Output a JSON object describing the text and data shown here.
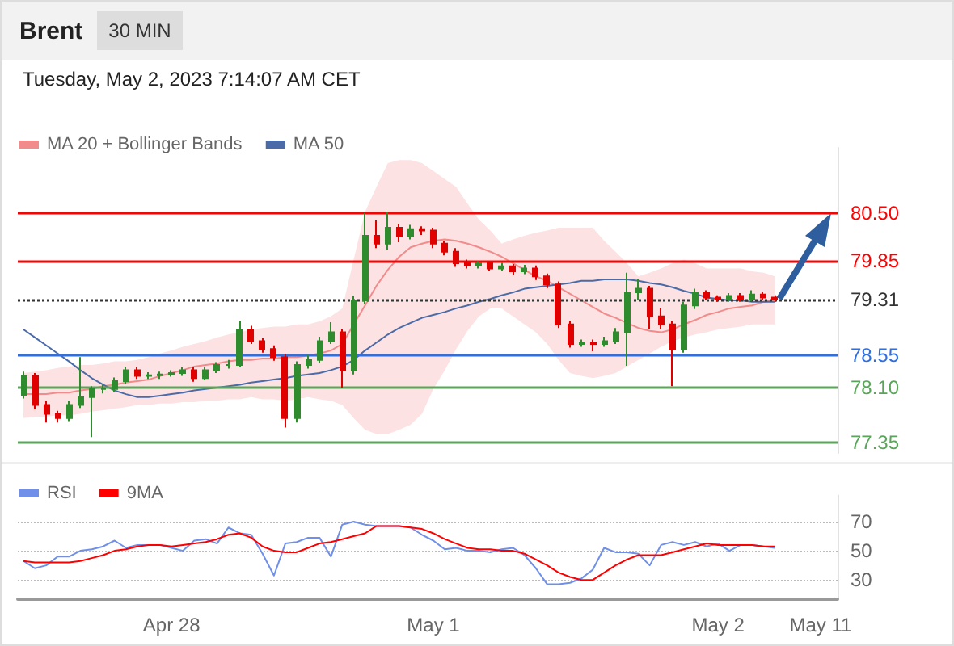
{
  "chart_data": [
    {
      "type": "candlestick",
      "title": "Brent",
      "subtitle": "Tuesday, May 2, 2023 7:14:07 AM CET",
      "annotations": [
        "30 MIN"
      ],
      "categories": [
        null,
        null,
        null,
        null,
        null,
        null,
        null,
        null,
        null,
        null,
        null,
        null,
        null,
        null,
        null,
        null,
        null,
        null,
        null,
        null,
        null,
        null,
        null,
        null,
        null,
        null,
        null,
        null,
        null,
        null,
        null,
        null,
        null,
        null,
        null,
        null,
        null,
        null,
        null,
        null,
        null,
        null,
        null,
        null,
        null,
        null,
        null,
        null,
        null,
        null,
        null,
        null,
        null,
        null,
        null,
        null,
        null,
        null,
        null,
        null,
        null,
        null,
        null,
        null,
        null,
        null,
        null,
        null,
        null,
        null,
        null,
        null
      ],
      "ohlc": [
        [
          78.0,
          78.32,
          77.95,
          78.26
        ],
        [
          78.26,
          78.3,
          77.8,
          77.86
        ],
        [
          77.86,
          77.92,
          77.62,
          77.74
        ],
        [
          77.74,
          77.78,
          77.62,
          77.68
        ],
        [
          77.68,
          77.92,
          77.64,
          77.86
        ],
        [
          77.86,
          78.52,
          77.82,
          77.97
        ],
        [
          77.97,
          78.12,
          77.42,
          78.08
        ],
        [
          78.08,
          78.14,
          78.02,
          78.08
        ],
        [
          78.08,
          78.24,
          78.04,
          78.19
        ],
        [
          78.19,
          78.39,
          78.15,
          78.34
        ],
        [
          78.34,
          78.38,
          78.22,
          78.26
        ],
        [
          78.26,
          78.31,
          78.22,
          78.27
        ],
        [
          78.27,
          78.32,
          78.22,
          78.28
        ],
        [
          78.28,
          78.34,
          78.25,
          78.3
        ],
        [
          78.3,
          78.38,
          78.26,
          78.34
        ],
        [
          78.34,
          78.38,
          78.18,
          78.23
        ],
        [
          78.23,
          78.38,
          78.2,
          78.34
        ],
        [
          78.34,
          78.45,
          78.3,
          78.41
        ],
        [
          78.41,
          78.48,
          78.36,
          78.41
        ],
        [
          78.41,
          79.02,
          78.38,
          78.9
        ],
        [
          78.9,
          78.95,
          78.7,
          78.74
        ],
        [
          78.74,
          78.78,
          78.58,
          78.63
        ],
        [
          78.63,
          78.68,
          78.47,
          78.52
        ],
        [
          78.52,
          78.56,
          77.55,
          77.68
        ],
        [
          77.68,
          78.46,
          77.62,
          78.41
        ],
        [
          78.41,
          78.55,
          78.36,
          78.48
        ],
        [
          78.48,
          78.8,
          78.44,
          78.74
        ],
        [
          78.74,
          79.0,
          78.7,
          78.86
        ],
        [
          78.86,
          78.9,
          78.1,
          78.34
        ],
        [
          78.34,
          79.36,
          78.28,
          79.3
        ],
        [
          79.3,
          80.5,
          79.25,
          80.19
        ],
        [
          80.19,
          80.4,
          80.02,
          80.08
        ],
        [
          80.08,
          80.52,
          80.0,
          80.3
        ],
        [
          80.3,
          80.35,
          80.1,
          80.19
        ],
        [
          80.19,
          80.34,
          80.14,
          80.28
        ],
        [
          80.28,
          80.32,
          80.2,
          80.26
        ],
        [
          80.26,
          80.3,
          80.02,
          80.08
        ],
        [
          80.08,
          80.12,
          79.92,
          79.97
        ],
        [
          79.97,
          80.02,
          79.76,
          79.81
        ],
        [
          79.81,
          79.86,
          79.74,
          79.79
        ],
        [
          79.79,
          79.84,
          79.74,
          79.81
        ],
        [
          79.81,
          79.83,
          79.7,
          79.74
        ],
        [
          79.74,
          79.82,
          79.7,
          79.77
        ],
        [
          79.77,
          79.8,
          79.65,
          79.7
        ],
        [
          79.7,
          79.79,
          79.66,
          79.74
        ],
        [
          79.74,
          79.78,
          79.58,
          79.63
        ],
        [
          79.63,
          79.67,
          79.47,
          79.52
        ],
        [
          79.52,
          79.56,
          78.92,
          78.97
        ],
        [
          78.97,
          79.02,
          78.65,
          78.7
        ],
        [
          78.7,
          78.76,
          78.66,
          78.72
        ],
        [
          78.72,
          78.76,
          78.6,
          78.7
        ],
        [
          78.7,
          78.8,
          78.66,
          78.74
        ],
        [
          78.74,
          78.92,
          78.7,
          78.86
        ],
        [
          78.86,
          79.68,
          78.4,
          79.41
        ],
        [
          79.41,
          79.6,
          79.3,
          79.46
        ],
        [
          79.46,
          79.5,
          78.9,
          79.08
        ],
        [
          79.08,
          79.2,
          78.9,
          78.97
        ],
        [
          78.97,
          79.02,
          78.12,
          78.63
        ],
        [
          78.63,
          79.28,
          78.58,
          79.23
        ],
        [
          79.23,
          79.46,
          79.18,
          79.41
        ],
        [
          79.41,
          79.44,
          79.3,
          79.34
        ],
        [
          79.34,
          79.37,
          79.28,
          79.32
        ],
        [
          79.32,
          79.4,
          79.28,
          79.36
        ],
        [
          79.36,
          79.4,
          79.28,
          79.32
        ],
        [
          79.32,
          79.44,
          79.29,
          79.38
        ],
        [
          79.38,
          79.42,
          79.3,
          79.34
        ],
        [
          79.34,
          79.37,
          79.28,
          79.31
        ],
        null,
        null,
        null,
        null,
        null
      ],
      "series": [
        {
          "type": "line",
          "name": "MA 20 + Bollinger Bands",
          "color": "#f28b8b",
          "values": [
            78.01,
            78.01,
            78.01,
            78.03,
            78.03,
            78.06,
            78.08,
            78.12,
            78.14,
            78.17,
            78.19,
            78.21,
            78.26,
            78.3,
            78.34,
            78.39,
            78.41,
            78.43,
            78.46,
            78.48,
            78.48,
            78.5,
            78.5,
            78.52,
            78.52,
            78.54,
            78.57,
            78.61,
            78.7,
            78.97,
            79.23,
            79.5,
            79.72,
            79.9,
            80.03,
            80.08,
            80.12,
            80.14,
            80.12,
            80.08,
            80.03,
            79.97,
            79.9,
            79.81,
            79.72,
            79.63,
            79.57,
            79.48,
            79.39,
            79.3,
            79.21,
            79.12,
            79.06,
            78.99,
            78.92,
            78.88,
            78.86,
            78.9,
            78.97,
            79.03,
            79.1,
            79.14,
            79.19,
            79.21,
            79.23,
            79.28,
            79.3,
            null,
            null,
            null,
            null,
            null
          ],
          "upper": [
            78.3,
            78.32,
            78.34,
            78.37,
            78.39,
            78.41,
            78.41,
            78.43,
            78.46,
            78.46,
            78.48,
            78.52,
            78.57,
            78.61,
            78.66,
            78.7,
            78.74,
            78.79,
            78.83,
            78.86,
            78.9,
            78.92,
            78.94,
            78.94,
            78.97,
            78.97,
            79.01,
            79.08,
            79.19,
            79.86,
            80.52,
            80.86,
            81.19,
            81.23,
            81.23,
            81.19,
            81.08,
            80.97,
            80.86,
            80.63,
            80.41,
            80.26,
            80.08,
            80.14,
            80.19,
            80.23,
            80.26,
            80.3,
            80.3,
            80.3,
            80.3,
            80.12,
            79.97,
            79.81,
            79.63,
            79.68,
            79.74,
            79.81,
            79.86,
            79.81,
            79.74,
            79.74,
            79.74,
            79.74,
            79.7,
            79.68,
            79.63,
            null,
            null,
            null,
            null,
            null
          ],
          "lower": [
            77.68,
            77.7,
            77.7,
            77.72,
            77.72,
            77.74,
            77.77,
            77.79,
            77.81,
            77.83,
            77.86,
            77.86,
            77.88,
            77.88,
            77.9,
            77.9,
            77.92,
            77.92,
            77.94,
            77.94,
            77.97,
            77.94,
            77.94,
            77.92,
            77.94,
            77.97,
            77.94,
            77.92,
            77.86,
            77.68,
            77.52,
            77.46,
            77.46,
            77.52,
            77.59,
            77.74,
            78.08,
            78.34,
            78.63,
            78.88,
            79.08,
            79.19,
            79.19,
            79.08,
            78.97,
            78.86,
            78.7,
            78.48,
            78.3,
            78.26,
            78.23,
            78.26,
            78.3,
            78.39,
            78.48,
            78.57,
            78.66,
            78.74,
            78.79,
            78.83,
            78.86,
            78.9,
            78.92,
            78.94,
            78.97,
            78.97,
            78.97,
            null,
            null,
            null,
            null,
            null
          ]
        },
        {
          "type": "line",
          "name": "MA 50",
          "color": "#4a6aa8",
          "values": [
            78.9,
            78.79,
            78.68,
            78.57,
            78.46,
            78.34,
            78.23,
            78.14,
            78.06,
            78.01,
            77.97,
            77.97,
            77.99,
            78.01,
            78.03,
            78.06,
            78.08,
            78.1,
            78.12,
            78.14,
            78.17,
            78.19,
            78.21,
            78.23,
            78.26,
            78.28,
            78.3,
            78.34,
            78.39,
            78.48,
            78.61,
            78.72,
            78.83,
            78.92,
            78.99,
            79.06,
            79.1,
            79.14,
            79.19,
            79.23,
            79.28,
            79.32,
            79.37,
            79.41,
            79.46,
            79.48,
            79.5,
            79.52,
            79.54,
            79.57,
            79.57,
            79.59,
            79.59,
            79.59,
            79.57,
            79.54,
            79.52,
            79.48,
            79.43,
            79.39,
            79.34,
            79.32,
            79.3,
            79.3,
            79.28,
            79.28,
            79.28,
            null,
            null,
            null,
            null,
            null
          ]
        }
      ],
      "ref_lines": [
        {
          "axis": "y",
          "value": 80.5,
          "label": "80.50",
          "color": "#ff0000"
        },
        {
          "axis": "y",
          "value": 79.85,
          "label": "79.85",
          "color": "#ff0000"
        },
        {
          "axis": "y",
          "value": 79.31,
          "label": "79.31",
          "color": "#333333",
          "line_style": "dotted"
        },
        {
          "axis": "y",
          "value": 78.55,
          "label": "78.55",
          "color": "#2f6fe0"
        },
        {
          "axis": "y",
          "value": 78.1,
          "label": "78.10",
          "color": "#5aa55a"
        },
        {
          "axis": "y",
          "value": 77.35,
          "label": "77.35",
          "color": "#5aa55a"
        }
      ],
      "ylim": [
        77.2,
        81.4
      ],
      "legend": "top left"
    },
    {
      "type": "line",
      "categories": [
        null,
        null,
        null,
        null,
        null,
        null,
        null,
        null,
        null,
        null,
        null,
        null,
        null,
        "Apr 28",
        null,
        null,
        null,
        null,
        null,
        null,
        null,
        null,
        null,
        null,
        null,
        null,
        null,
        null,
        null,
        null,
        null,
        null,
        null,
        null,
        null,
        null,
        "May 1",
        null,
        null,
        null,
        null,
        null,
        null,
        null,
        null,
        null,
        null,
        null,
        null,
        null,
        null,
        null,
        null,
        null,
        null,
        null,
        null,
        null,
        null,
        null,
        null,
        "May 2",
        null,
        null,
        null,
        null,
        null,
        null,
        null,
        null,
        "May 11",
        null
      ],
      "series": [
        {
          "name": "RSI",
          "color": "#6f8fe8",
          "values": [
            43,
            38,
            40,
            46,
            46,
            50,
            51,
            53,
            57,
            52,
            54,
            54,
            54,
            52,
            50,
            57,
            58,
            55,
            66,
            62,
            61,
            48,
            33,
            55,
            56,
            59,
            59,
            46,
            68,
            70,
            68,
            67,
            67,
            67,
            66,
            61,
            57,
            51,
            52,
            50,
            50,
            49,
            51,
            52,
            47,
            38,
            27,
            27,
            28,
            31,
            37,
            52,
            49,
            49,
            48,
            40,
            54,
            56,
            54,
            56,
            53,
            55,
            50,
            54,
            54,
            53,
            52,
            null,
            null,
            null,
            null,
            null
          ]
        },
        {
          "name": "9MA",
          "color": "#ff0000",
          "values": [
            43,
            42,
            42,
            42,
            42,
            43,
            45,
            47,
            50,
            51,
            53,
            54,
            54,
            53,
            54,
            55,
            56,
            58,
            61,
            62,
            59,
            53,
            50,
            49,
            49,
            52,
            55,
            56,
            58,
            60,
            62,
            67,
            67,
            67,
            66,
            65,
            62,
            58,
            55,
            52,
            51,
            51,
            50,
            50,
            48,
            44,
            40,
            35,
            32,
            30,
            30,
            35,
            40,
            44,
            47,
            47,
            47,
            49,
            51,
            53,
            55,
            54,
            54,
            54,
            54,
            53,
            53,
            null,
            null,
            null,
            null,
            null
          ]
        }
      ],
      "ylim": [
        17,
        88
      ],
      "yticks": [
        30,
        50,
        70
      ],
      "grid": "y",
      "legend": "top left",
      "marker": "none"
    }
  ]
}
